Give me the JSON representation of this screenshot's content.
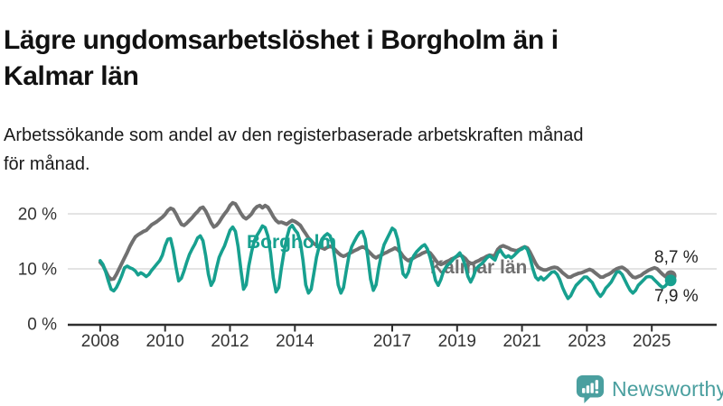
{
  "header": {
    "title_lines": [
      "Lägre ungdomsarbetslöshet i Borgholm än i",
      "Kalmar län"
    ],
    "subtitle_lines": [
      "Arbetssökande som andel av den registerbaserade arbetskraften månad",
      "för månad."
    ]
  },
  "chart_data": {
    "type": "line",
    "unit": "percent of labour force",
    "frequency": "monthly",
    "x_start": "2008-01",
    "x_end": "2025-08",
    "x_axis": {
      "tick_labels": [
        "2008",
        "2010",
        "2012",
        "2014",
        "2017",
        "2019",
        "2021",
        "2023",
        "2025"
      ],
      "tick_values": [
        2008,
        2010,
        2012,
        2014,
        2017,
        2019,
        2021,
        2023,
        2025
      ],
      "range": [
        2007,
        2027
      ]
    },
    "y_axis": {
      "tick_labels": [
        "0 %",
        "10 %",
        "20 %"
      ],
      "tick_values": [
        0,
        10,
        20
      ],
      "range": [
        0,
        24
      ]
    },
    "grid": "horizontal",
    "grid_color": "#dcdcdc",
    "axis_color": "#2e2e2e",
    "tick_text_color": "#333333",
    "value_label_color": "#222222",
    "legend": "inline-labels",
    "series": [
      {
        "name": "Kalmar län",
        "color": "#707070",
        "end_value": 8.7,
        "end_label": "8,7 %",
        "values": [
          11.2,
          10.6,
          9.6,
          8.6,
          8.1,
          8.2,
          9.0,
          10.0,
          11.0,
          12.0,
          13.0,
          14.1,
          15.0,
          15.8,
          16.2,
          16.5,
          16.8,
          17.0,
          17.5,
          18.0,
          18.3,
          18.6,
          19.0,
          19.4,
          19.9,
          20.6,
          21.0,
          20.8,
          20.0,
          19.0,
          18.1,
          17.9,
          18.3,
          18.8,
          19.3,
          19.9,
          20.4,
          21.0,
          21.2,
          20.5,
          19.5,
          18.4,
          17.6,
          17.9,
          18.5,
          19.3,
          20.0,
          20.6,
          21.5,
          22.0,
          21.8,
          21.0,
          20.1,
          19.4,
          19.1,
          19.5,
          20.0,
          20.8,
          21.3,
          21.5,
          21.1,
          21.5,
          21.2,
          20.4,
          19.5,
          18.8,
          18.4,
          18.5,
          18.3,
          18.1,
          18.5,
          18.8,
          18.6,
          18.3,
          17.9,
          17.1,
          16.4,
          15.6,
          15.1,
          14.6,
          14.3,
          14.0,
          13.8,
          13.6,
          13.9,
          14.1,
          13.9,
          13.4,
          12.9,
          12.5,
          12.3,
          12.5,
          12.8,
          13.0,
          13.3,
          13.5,
          13.8,
          14.0,
          13.8,
          13.3,
          12.8,
          12.3,
          12.0,
          12.3,
          12.5,
          12.8,
          13.0,
          13.3,
          13.5,
          13.8,
          13.5,
          13.0,
          12.3,
          11.8,
          11.5,
          11.8,
          12.0,
          12.3,
          12.5,
          12.8,
          13.0,
          13.2,
          12.9,
          12.3,
          11.6,
          11.0,
          10.8,
          11.0,
          11.3,
          11.5,
          11.8,
          12.0,
          12.3,
          12.5,
          12.3,
          11.9,
          11.3,
          11.0,
          11.0,
          11.3,
          11.5,
          11.8,
          12.0,
          12.3,
          12.5,
          12.4,
          12.5,
          13.5,
          14.0,
          14.2,
          14.0,
          13.8,
          13.5,
          13.4,
          13.3,
          13.5,
          13.8,
          14.0,
          13.8,
          13.0,
          12.0,
          11.0,
          10.3,
          10.0,
          9.8,
          9.8,
          10.0,
          10.2,
          10.3,
          10.2,
          9.8,
          9.3,
          8.9,
          8.5,
          8.5,
          8.8,
          9.0,
          9.2,
          9.3,
          9.5,
          9.7,
          9.9,
          9.7,
          9.3,
          8.9,
          8.5,
          8.5,
          8.8,
          9.0,
          9.3,
          9.7,
          10.0,
          10.2,
          10.3,
          10.0,
          9.6,
          9.0,
          8.5,
          8.4,
          8.6,
          8.8,
          9.2,
          9.5,
          9.8,
          10.0,
          10.2,
          10.0,
          9.5,
          9.0,
          8.6,
          8.4,
          8.7
        ]
      },
      {
        "name": "Borgholm",
        "color": "#17a08f",
        "end_value": 7.9,
        "end_label": "7,9 %",
        "values": [
          11.5,
          10.8,
          9.5,
          7.8,
          6.3,
          6.0,
          6.6,
          7.6,
          8.8,
          10.2,
          10.5,
          10.2,
          10.0,
          9.6,
          8.9,
          9.3,
          9.0,
          8.6,
          9.0,
          9.7,
          10.3,
          10.9,
          11.5,
          12.5,
          14.2,
          15.4,
          15.5,
          13.4,
          10.4,
          7.8,
          8.3,
          9.6,
          11.2,
          12.6,
          13.6,
          14.5,
          15.6,
          16.0,
          15.1,
          12.4,
          9.0,
          7.0,
          7.9,
          10.1,
          12.1,
          13.2,
          14.2,
          15.6,
          17.0,
          17.6,
          16.8,
          14.0,
          9.9,
          6.3,
          7.1,
          10.6,
          13.1,
          15.1,
          16.1,
          16.9,
          17.8,
          17.5,
          16.0,
          12.9,
          8.4,
          5.8,
          6.6,
          10.1,
          13.1,
          15.6,
          17.4,
          17.9,
          17.1,
          16.5,
          14.9,
          11.5,
          7.1,
          5.6,
          6.3,
          9.1,
          12.1,
          14.1,
          15.4,
          16.0,
          16.4,
          16.0,
          14.4,
          11.0,
          7.1,
          5.6,
          6.6,
          9.6,
          12.4,
          14.0,
          15.0,
          15.9,
          16.6,
          16.8,
          15.4,
          12.0,
          8.1,
          6.1,
          7.1,
          10.1,
          12.6,
          14.4,
          15.4,
          16.4,
          17.4,
          17.0,
          15.4,
          12.4,
          9.1,
          8.5,
          9.4,
          11.4,
          12.4,
          13.1,
          13.6,
          14.1,
          14.4,
          13.6,
          12.1,
          10.1,
          7.9,
          7.0,
          8.1,
          9.6,
          10.4,
          10.9,
          11.4,
          12.0,
          12.4,
          12.9,
          12.0,
          10.6,
          8.6,
          7.6,
          8.6,
          10.0,
          10.5,
          10.9,
          11.4,
          12.0,
          12.4,
          12.0,
          11.6,
          12.9,
          13.4,
          12.6,
          12.1,
          12.4,
          12.0,
          12.4,
          12.9,
          13.4,
          13.6,
          14.0,
          13.5,
          12.0,
          10.0,
          8.5,
          8.0,
          8.5,
          8.0,
          8.4,
          8.9,
          9.4,
          9.5,
          9.0,
          8.0,
          6.6,
          5.5,
          4.6,
          5.1,
          6.1,
          7.0,
          7.5,
          8.0,
          8.5,
          8.5,
          8.0,
          7.5,
          6.5,
          5.6,
          5.0,
          5.6,
          6.5,
          7.0,
          7.6,
          8.5,
          9.4,
          9.5,
          9.0,
          8.0,
          7.0,
          6.1,
          5.6,
          6.1,
          7.0,
          7.5,
          8.0,
          8.5,
          8.6,
          8.5,
          8.0,
          7.5,
          7.0,
          6.6,
          6.9,
          7.5,
          7.9
        ]
      }
    ]
  },
  "footer": {
    "brand": "Newsworthy",
    "brand_color": "#4a9f9f"
  }
}
